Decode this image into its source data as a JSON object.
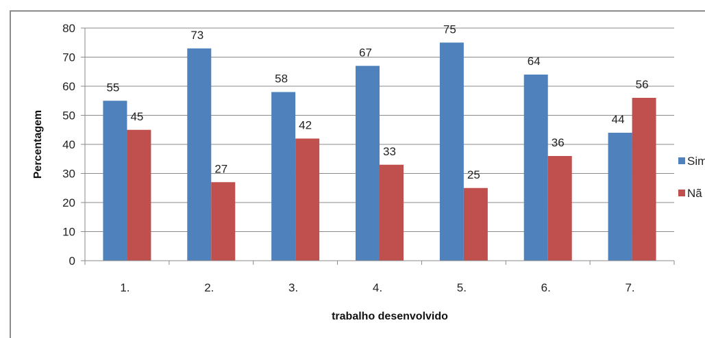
{
  "chart_data": {
    "type": "bar",
    "title": "",
    "xlabel": "trabalho desenvolvido",
    "ylabel": "Percentagem",
    "categories": [
      "1.",
      "2.",
      "3.",
      "4.",
      "5.",
      "6.",
      "7."
    ],
    "series": [
      {
        "name": "Sim",
        "color": "#4f81bd",
        "values": [
          55,
          73,
          58,
          67,
          75,
          64,
          44
        ]
      },
      {
        "name": "Não",
        "color": "#c0504d",
        "values": [
          45,
          27,
          42,
          33,
          25,
          36,
          56
        ]
      }
    ],
    "ylim": [
      0,
      80
    ],
    "yticks": [
      0,
      10,
      20,
      30,
      40,
      50,
      60,
      70,
      80
    ],
    "grid": true,
    "legend": "right",
    "legend_visible_text": [
      "Sim",
      "Nã"
    ]
  }
}
